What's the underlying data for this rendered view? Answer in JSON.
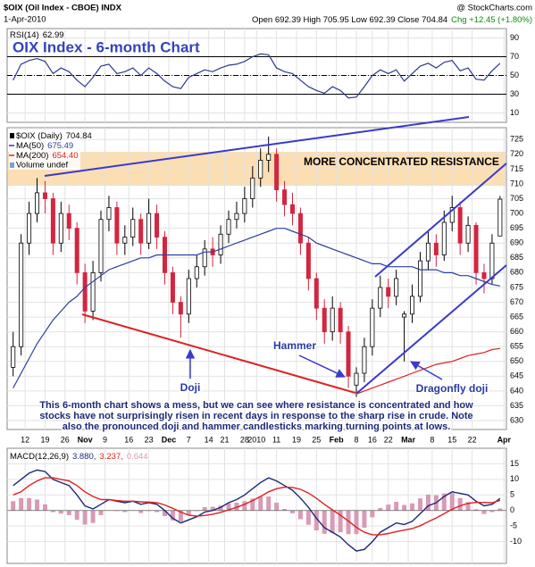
{
  "header": {
    "symbol": "$OIX (Oil Index - CBOE) INDX",
    "copyright": "@ StockCharts.com",
    "date": "1-Apr-2010",
    "quote": "Open 692.39 High 705.95 Low 692.39 Close 704.84",
    "change": "Chg +12.45 (+1.80%)"
  },
  "heading": "OIX Index - 6-month Chart",
  "annotations": {
    "resistance": "MORE CONCENTRATED RESISTANCE",
    "hammer": "Hammer",
    "doji": "Doji",
    "dragonfly": "Dragonfly doji",
    "note": [
      "This 6-month chart shows a mess, but we can see where resistance is concentrated and how",
      "stocks have not surprisingly risen in recent days in response to the sharp rise in crude. Note",
      "also the pronounced doji and hammer candlesticks marking turning points at lows."
    ]
  },
  "chart_data": [
    {
      "type": "line",
      "title": "RSI(14)",
      "ylim": [
        0,
        100
      ],
      "yticks": [
        10,
        30,
        50,
        70,
        90
      ],
      "grid": true,
      "ref_lines": [
        {
          "value": 70,
          "style": "solid"
        },
        {
          "value": 50,
          "style": "dashdot"
        },
        {
          "value": 30,
          "style": "solid"
        }
      ],
      "series": [
        {
          "value_label": "62.99",
          "color": "#2b3a8c",
          "values": [
            45,
            62,
            66,
            68,
            65,
            52,
            58,
            54,
            45,
            38,
            48,
            60,
            62,
            52,
            54,
            58,
            50,
            58,
            52,
            44,
            38,
            36,
            48,
            52,
            56,
            54,
            58,
            61,
            62,
            65,
            70,
            73,
            72,
            58,
            54,
            52,
            45,
            38,
            34,
            31,
            38,
            34,
            26,
            27,
            38,
            50,
            56,
            52,
            56,
            44,
            52,
            60,
            63,
            58,
            64,
            66,
            55,
            58,
            46,
            45,
            55,
            62.99
          ]
        }
      ]
    },
    {
      "type": "candlestick",
      "name": "$OIX (Daily)",
      "value_label": "704.84",
      "volume_label": "Volume undef",
      "up_color": "#ffffff",
      "down_color": "#d4253f",
      "grid": true,
      "xlim": [
        -4.5,
        120.6
      ],
      "ylim": [
        627,
        729
      ],
      "yticks": [
        630,
        635,
        640,
        645,
        650,
        655,
        660,
        665,
        670,
        675,
        680,
        685,
        690,
        695,
        700,
        705,
        710,
        715,
        720,
        725
      ],
      "xticks": [
        {
          "value": 0,
          "label": "12"
        },
        {
          "value": 5,
          "label": "19"
        },
        {
          "value": 10,
          "label": "26"
        },
        {
          "value": 15,
          "label": "Nov"
        },
        {
          "value": 20,
          "label": "9"
        },
        {
          "value": 26,
          "label": "16"
        },
        {
          "value": 31,
          "label": "23"
        },
        {
          "value": 36,
          "label": "Dec"
        },
        {
          "value": 41,
          "label": "7"
        },
        {
          "value": 46,
          "label": "14"
        },
        {
          "value": 50,
          "label": "21"
        },
        {
          "value": 55,
          "label": "28"
        },
        {
          "value": 58,
          "label": "2010"
        },
        {
          "value": 63,
          "label": "11"
        },
        {
          "value": 68,
          "label": "19"
        },
        {
          "value": 73,
          "label": "25"
        },
        {
          "value": 78,
          "label": "Feb"
        },
        {
          "value": 83,
          "label": "8"
        },
        {
          "value": 87,
          "label": "16"
        },
        {
          "value": 91,
          "label": "22"
        },
        {
          "value": 96,
          "label": "Mar"
        },
        {
          "value": 102,
          "label": "8"
        },
        {
          "value": 107,
          "label": "15"
        },
        {
          "value": 112,
          "label": "22"
        },
        {
          "value": 120,
          "label": "Apr"
        }
      ],
      "x": [
        -3,
        -1,
        1,
        3,
        5,
        7,
        9,
        11,
        13,
        15,
        17,
        19,
        21,
        23,
        25,
        27,
        29,
        31,
        33,
        35,
        37,
        39,
        41,
        43,
        45,
        47,
        49,
        51,
        53,
        55,
        57,
        59,
        61,
        63,
        65,
        67,
        69,
        71,
        73,
        75,
        77,
        79,
        81,
        83,
        85,
        87,
        89,
        91,
        93,
        95,
        97,
        99,
        101,
        103,
        105,
        107,
        109,
        111,
        113,
        115,
        117,
        119
      ],
      "open": [
        648,
        655,
        690,
        700,
        707,
        705,
        690,
        700,
        695,
        680,
        667,
        680,
        698,
        702,
        690,
        692,
        698,
        690,
        700,
        692,
        680,
        670,
        666,
        678,
        682,
        688,
        686,
        693,
        698,
        700,
        705,
        712,
        718,
        720,
        708,
        703,
        700,
        690,
        678,
        668,
        660,
        668,
        660,
        642,
        646,
        655,
        668,
        675,
        672,
        665,
        666,
        672,
        684,
        690,
        686,
        697,
        702,
        690,
        696,
        680,
        678,
        692.39
      ],
      "high": [
        660,
        693,
        704,
        712,
        711,
        707,
        704,
        703,
        697,
        683,
        684,
        701,
        706,
        704,
        696,
        702,
        700,
        705,
        703,
        694,
        682,
        672,
        681,
        686,
        691,
        692,
        696,
        701,
        704,
        709,
        716,
        722,
        726,
        722,
        711,
        707,
        702,
        692,
        680,
        671,
        672,
        670,
        662,
        648,
        658,
        671,
        679,
        678,
        681,
        667,
        676,
        687,
        694,
        693,
        701,
        706,
        704,
        699,
        697,
        683,
        693,
        705.95
      ],
      "low": [
        645,
        652,
        686,
        697,
        700,
        686,
        687,
        691,
        676,
        663,
        664,
        677,
        694,
        686,
        686,
        689,
        686,
        688,
        688,
        676,
        666,
        658,
        663,
        675,
        679,
        682,
        683,
        690,
        695,
        697,
        702,
        709,
        714,
        704,
        699,
        696,
        686,
        674,
        664,
        656,
        657,
        656,
        641,
        638,
        643,
        652,
        665,
        668,
        669,
        650,
        663,
        670,
        681,
        682,
        684,
        694,
        686,
        687,
        676,
        673,
        676,
        692.39
      ],
      "close": [
        655,
        690,
        700,
        707,
        705,
        690,
        700,
        695,
        680,
        667,
        680,
        698,
        702,
        690,
        692,
        698,
        690,
        700,
        692,
        680,
        670,
        666,
        678,
        682,
        688,
        686,
        693,
        698,
        700,
        705,
        712,
        718,
        720,
        708,
        703,
        700,
        690,
        678,
        668,
        660,
        668,
        660,
        645,
        646,
        655,
        668,
        675,
        672,
        678,
        666,
        672,
        684,
        690,
        686,
        697,
        702,
        690,
        696,
        680,
        678,
        690,
        704.84
      ],
      "series": [
        {
          "name": "MA(50)",
          "value_label": "675.49",
          "color": "#2c3e9e",
          "values": [
            641,
            646,
            651,
            656,
            660,
            664,
            667,
            670,
            672,
            675,
            677,
            679,
            681,
            682,
            683,
            684,
            685,
            685,
            686,
            686,
            686,
            686,
            686,
            686,
            687,
            687,
            688,
            689,
            690,
            691,
            692,
            693,
            694,
            695,
            695,
            694,
            693,
            692,
            690,
            689,
            688,
            687,
            686,
            685,
            684,
            683,
            683,
            682,
            682,
            682,
            682,
            681,
            681,
            681,
            680,
            680,
            679,
            679,
            678,
            677,
            676,
            675.49
          ]
        },
        {
          "name": "MA(200)",
          "value_label": "654.40",
          "color": "#dd2222",
          "values": [
            null,
            null,
            null,
            null,
            null,
            null,
            null,
            null,
            null,
            null,
            null,
            null,
            null,
            null,
            null,
            null,
            null,
            null,
            null,
            null,
            null,
            null,
            null,
            null,
            null,
            null,
            null,
            null,
            null,
            null,
            null,
            null,
            null,
            null,
            null,
            null,
            null,
            null,
            null,
            null,
            null,
            null,
            null,
            639,
            640,
            641,
            642,
            643,
            644,
            645,
            646,
            647,
            648,
            649,
            649.5,
            650,
            651,
            652,
            652.5,
            653,
            654,
            654.4
          ]
        }
      ]
    },
    {
      "type": "macd",
      "title": "MACD(12,26,9)",
      "ylim": [
        -17,
        20
      ],
      "yticks": [
        -10,
        -5,
        0,
        5,
        10,
        15
      ],
      "grid": true,
      "series": [
        {
          "kind": "bar",
          "value_label": "0.644",
          "color": "#d99ab6",
          "values": [
            3,
            4,
            4,
            3.5,
            2,
            -0.5,
            -1,
            -1.5,
            -3,
            -4.5,
            -4,
            -1.5,
            0,
            -0.2,
            -0.5,
            0,
            -0.8,
            -0.2,
            -0.5,
            -1.8,
            -3.2,
            -3.5,
            -1.5,
            -0.2,
            1.1,
            1.2,
            1.6,
            2.3,
            2.5,
            3,
            3.8,
            4.5,
            4.5,
            2.5,
            0.5,
            -0.9,
            -2.8,
            -4.6,
            -6.4,
            -7.5,
            -7.2,
            -7,
            -7.6,
            -7.6,
            -5.5,
            -2.2,
            0.8,
            1.9,
            2.8,
            1.8,
            2.3,
            3.9,
            5.1,
            4.9,
            5.5,
            5.6,
            4,
            2.7,
            0.4,
            -1.1,
            -0.5,
            0.644
          ]
        },
        {
          "kind": "line",
          "value_label": "3.880,",
          "color": "#1b2a78",
          "values": [
            8,
            10,
            12,
            13,
            12.5,
            10,
            9,
            8,
            5,
            1.5,
            0.5,
            2,
            3.5,
            3,
            2.5,
            3,
            2,
            2.5,
            2,
            0,
            -2.5,
            -4,
            -3,
            -2,
            -0.5,
            0,
            1,
            2.5,
            3.5,
            5,
            7,
            9,
            10.5,
            9.5,
            8,
            6.5,
            4,
            1,
            -2.5,
            -5.5,
            -7,
            -8.5,
            -11,
            -13,
            -12.5,
            -10,
            -7,
            -5.5,
            -4,
            -4.5,
            -3.5,
            -1,
            1.5,
            2.5,
            4.5,
            6,
            5.5,
            5,
            3,
            1.5,
            2,
            3.88
          ]
        },
        {
          "kind": "line",
          "value_label": "3.237,",
          "color": "#e02020",
          "values": [
            5,
            6,
            8,
            9.5,
            10.5,
            10.5,
            10,
            9.5,
            8,
            6,
            4.5,
            3.5,
            3.5,
            3.2,
            3,
            3,
            2.8,
            2.7,
            2.5,
            1.8,
            0.7,
            -0.5,
            -1.5,
            -1.8,
            -1.6,
            -1.2,
            -0.6,
            0.2,
            1,
            2,
            3.2,
            4.5,
            6,
            7,
            7.5,
            7.4,
            6.8,
            5.6,
            3.9,
            2,
            0.2,
            -1.5,
            -3.4,
            -5.4,
            -7,
            -7.8,
            -7.8,
            -7.4,
            -6.8,
            -6.3,
            -5.8,
            -4.9,
            -3.6,
            -2.4,
            -1,
            0.4,
            1.5,
            2.3,
            2.6,
            2.6,
            2.5,
            3.237
          ]
        }
      ]
    }
  ]
}
